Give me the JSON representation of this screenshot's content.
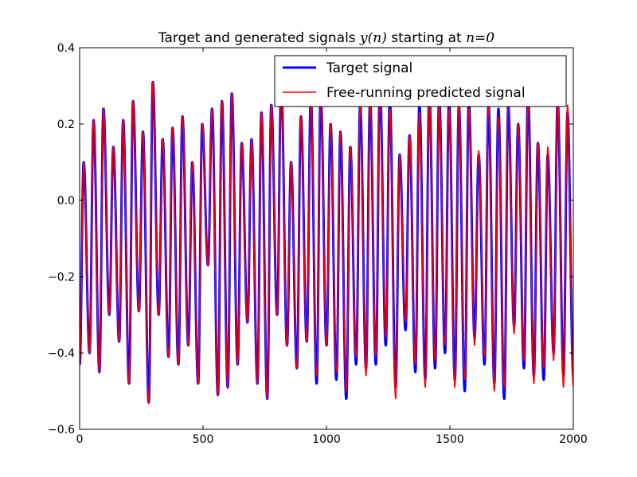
{
  "chart_data": {
    "type": "line",
    "title": {
      "prefix": "Target and generated signals ",
      "math1": "y(n)",
      "middle": " starting at ",
      "math2": "n=0"
    },
    "xlabel": "",
    "ylabel": "",
    "xlim": [
      0,
      2000
    ],
    "ylim": [
      -0.6,
      0.4
    ],
    "x_ticks": [
      0,
      500,
      1000,
      1500,
      2000
    ],
    "x_tick_labels": [
      "0",
      "500",
      "1000",
      "1500",
      "2000"
    ],
    "y_ticks": [
      0.4,
      0.2,
      0.0,
      -0.2,
      -0.4,
      -0.6
    ],
    "y_tick_labels": [
      "0.4",
      "0.2",
      "0.0",
      "−0.2",
      "−0.4",
      "−0.6"
    ],
    "grid": false,
    "legend_position": "top-right",
    "x_step": 1,
    "series": [
      {
        "name": "Target signal",
        "color": "#0000ff",
        "peaks": [
          0.1,
          0.21,
          0.24,
          0.14,
          0.21,
          0.26,
          0.18,
          0.31,
          0.16,
          0.19,
          0.22,
          0.1,
          0.2,
          0.24,
          0.26,
          0.28,
          0.15,
          0.16,
          0.23,
          0.25,
          0.31,
          0.1,
          0.22,
          0.27,
          0.28,
          0.2,
          0.18,
          0.14,
          0.25,
          0.26,
          0.3,
          0.26,
          0.12,
          0.17,
          0.25,
          0.28,
          0.27,
          0.26,
          0.25,
          0.26,
          0.12,
          0.25,
          0.24,
          0.25,
          0.2,
          0.28,
          0.15,
          0.12,
          0.26,
          0.23
        ],
        "troughs": [
          -0.43,
          -0.4,
          -0.45,
          -0.3,
          -0.37,
          -0.48,
          -0.29,
          -0.53,
          -0.3,
          -0.41,
          -0.43,
          -0.38,
          -0.48,
          -0.17,
          -0.51,
          -0.49,
          -0.43,
          -0.32,
          -0.48,
          -0.52,
          -0.3,
          -0.38,
          -0.44,
          -0.37,
          -0.48,
          -0.38,
          -0.47,
          -0.52,
          -0.43,
          -0.44,
          -0.43,
          -0.38,
          -0.49,
          -0.34,
          -0.45,
          -0.47,
          -0.44,
          -0.4,
          -0.47,
          -0.5,
          -0.36,
          -0.43,
          -0.48,
          -0.52,
          -0.33,
          -0.44,
          -0.46,
          -0.47,
          -0.4,
          -0.46
        ]
      },
      {
        "name": "Free-running predicted signal",
        "color": "#ff0000",
        "peaks": [
          0.1,
          0.21,
          0.24,
          0.14,
          0.21,
          0.26,
          0.18,
          0.31,
          0.16,
          0.19,
          0.22,
          0.1,
          0.2,
          0.24,
          0.26,
          0.28,
          0.15,
          0.16,
          0.23,
          0.25,
          0.31,
          0.1,
          0.22,
          0.27,
          0.28,
          0.2,
          0.18,
          0.14,
          0.25,
          0.26,
          0.28,
          0.24,
          0.12,
          0.17,
          0.23,
          0.26,
          0.25,
          0.24,
          0.27,
          0.24,
          0.13,
          0.25,
          0.22,
          0.28,
          0.2,
          0.26,
          0.15,
          0.14,
          0.26,
          0.25
        ],
        "troughs": [
          -0.43,
          -0.4,
          -0.45,
          -0.3,
          -0.37,
          -0.48,
          -0.29,
          -0.53,
          -0.3,
          -0.41,
          -0.43,
          -0.38,
          -0.48,
          -0.17,
          -0.51,
          -0.49,
          -0.43,
          -0.32,
          -0.48,
          -0.52,
          -0.3,
          -0.38,
          -0.44,
          -0.37,
          -0.46,
          -0.38,
          -0.45,
          -0.5,
          -0.41,
          -0.46,
          -0.41,
          -0.36,
          -0.52,
          -0.32,
          -0.43,
          -0.49,
          -0.42,
          -0.38,
          -0.49,
          -0.47,
          -0.38,
          -0.41,
          -0.5,
          -0.49,
          -0.35,
          -0.42,
          -0.48,
          -0.44,
          -0.42,
          -0.49
        ]
      }
    ]
  }
}
